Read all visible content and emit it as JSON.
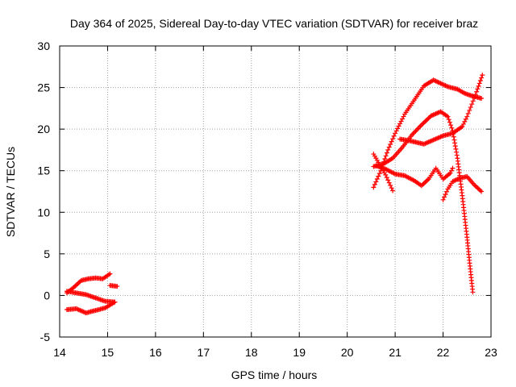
{
  "chart_data": {
    "type": "scatter",
    "title": "Day 364 of 2025, Sidereal Day-to-day VTEC variation (SDTVAR) for receiver braz",
    "xlabel": "GPS time / hours",
    "ylabel": "SDTVAR / TECUs",
    "xlim": [
      14,
      23
    ],
    "ylim": [
      -5,
      30
    ],
    "xticks": [
      "14",
      "15",
      "16",
      "17",
      "18",
      "19",
      "20",
      "21",
      "22",
      "23"
    ],
    "yticks": [
      "-5",
      "0",
      "5",
      "10",
      "15",
      "20",
      "25",
      "30"
    ],
    "grid": true,
    "marker": "plus",
    "color": "#ff0000",
    "series": [
      {
        "points": [
          [
            14.15,
            0.3
          ],
          [
            14.3,
            1.0
          ],
          [
            14.45,
            1.8
          ],
          [
            14.6,
            2.0
          ],
          [
            14.75,
            2.1
          ],
          [
            14.9,
            2.0
          ],
          [
            15.05,
            2.6
          ]
        ]
      },
      {
        "points": [
          [
            14.15,
            0.5
          ],
          [
            14.35,
            0.3
          ],
          [
            14.55,
            0.1
          ],
          [
            14.75,
            -0.3
          ],
          [
            14.95,
            -0.7
          ],
          [
            15.15,
            -0.8
          ]
        ]
      },
      {
        "points": [
          [
            14.15,
            -1.7
          ],
          [
            14.35,
            -1.6
          ],
          [
            14.55,
            -2.1
          ],
          [
            14.75,
            -1.8
          ],
          [
            14.95,
            -1.5
          ],
          [
            15.15,
            -0.8
          ]
        ]
      },
      {
        "points": [
          [
            15.05,
            1.2
          ],
          [
            15.2,
            1.1
          ]
        ]
      },
      {
        "points": [
          [
            20.55,
            13.0
          ],
          [
            20.7,
            15.0
          ],
          [
            20.85,
            17.5
          ],
          [
            21.0,
            19.5
          ],
          [
            21.2,
            21.8
          ],
          [
            21.4,
            23.5
          ],
          [
            21.6,
            25.2
          ],
          [
            21.8,
            25.9
          ],
          [
            21.95,
            25.5
          ],
          [
            22.1,
            25.1
          ],
          [
            22.3,
            24.8
          ],
          [
            22.45,
            24.3
          ],
          [
            22.6,
            24.0
          ],
          [
            22.8,
            23.7
          ]
        ]
      },
      {
        "points": [
          [
            20.55,
            15.5
          ],
          [
            20.75,
            15.8
          ],
          [
            20.95,
            16.5
          ],
          [
            21.15,
            17.8
          ],
          [
            21.35,
            19.3
          ],
          [
            21.55,
            20.5
          ],
          [
            21.75,
            21.6
          ],
          [
            21.95,
            22.1
          ],
          [
            22.1,
            21.5
          ],
          [
            22.2,
            19.8
          ],
          [
            22.3,
            16.5
          ],
          [
            22.4,
            12.0
          ],
          [
            22.5,
            7.0
          ],
          [
            22.58,
            2.5
          ],
          [
            22.62,
            0.4
          ]
        ]
      },
      {
        "points": [
          [
            20.55,
            17.0
          ],
          [
            20.7,
            15.5
          ],
          [
            20.8,
            14.5
          ],
          [
            20.95,
            12.6
          ]
        ]
      },
      {
        "points": [
          [
            20.6,
            15.6
          ],
          [
            20.8,
            15.2
          ],
          [
            21.0,
            14.6
          ],
          [
            21.2,
            14.4
          ],
          [
            21.4,
            13.8
          ],
          [
            21.55,
            13.2
          ],
          [
            21.7,
            14.0
          ],
          [
            21.85,
            15.3
          ],
          [
            22.0,
            14.0
          ],
          [
            22.15,
            14.7
          ],
          [
            22.2,
            15.3
          ]
        ]
      },
      {
        "points": [
          [
            21.1,
            18.8
          ],
          [
            21.3,
            18.6
          ],
          [
            21.45,
            18.4
          ],
          [
            21.6,
            18.2
          ],
          [
            21.8,
            18.7
          ],
          [
            22.0,
            19.2
          ],
          [
            22.2,
            19.5
          ],
          [
            22.4,
            20.3
          ],
          [
            22.5,
            21.5
          ],
          [
            22.6,
            23.0
          ],
          [
            22.7,
            24.5
          ],
          [
            22.82,
            26.5
          ]
        ]
      },
      {
        "points": [
          [
            22.0,
            11.5
          ],
          [
            22.1,
            12.8
          ],
          [
            22.2,
            13.7
          ],
          [
            22.35,
            14.1
          ],
          [
            22.5,
            14.3
          ],
          [
            22.65,
            13.3
          ],
          [
            22.8,
            12.5
          ]
        ]
      }
    ]
  }
}
